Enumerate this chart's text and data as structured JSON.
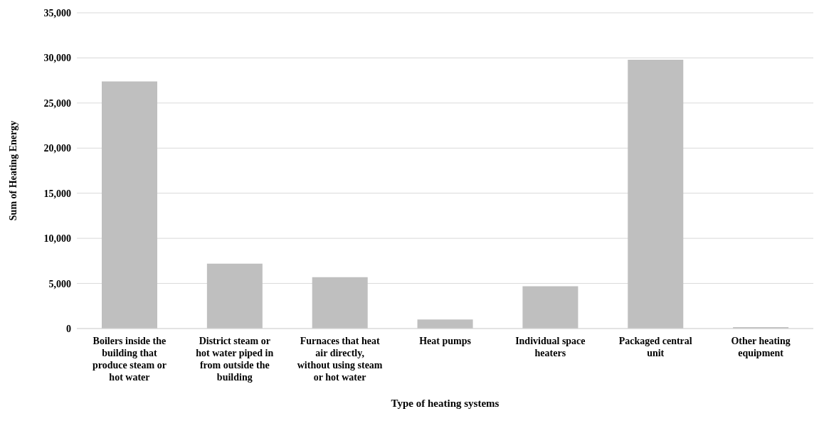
{
  "chart_data": {
    "type": "bar",
    "xlabel": "Type of heating systems",
    "ylabel": "Sum of Heating Energy",
    "categories": [
      "Boilers inside the building that produce steam or hot water",
      "District steam or hot water piped in from outside the building",
      "Furnaces that heat air directly, without using steam or hot water",
      "Heat pumps",
      "Individual space heaters",
      "Packaged central unit",
      "Other heating equipment"
    ],
    "values": [
      27400,
      7200,
      5700,
      1000,
      4700,
      29800,
      150
    ],
    "color": "#bfbfbf",
    "ylim": [
      0,
      35000
    ],
    "yticks": [
      {
        "value": 0,
        "label": "0"
      },
      {
        "value": 5000,
        "label": "5,000"
      },
      {
        "value": 10000,
        "label": "10,000"
      },
      {
        "value": 15000,
        "label": "15,000"
      },
      {
        "value": 20000,
        "label": "20,000"
      },
      {
        "value": 25000,
        "label": "25,000"
      },
      {
        "value": 30000,
        "label": "30,000"
      },
      {
        "value": 35000,
        "label": "35,000"
      }
    ],
    "grid": "y",
    "legend": false
  }
}
